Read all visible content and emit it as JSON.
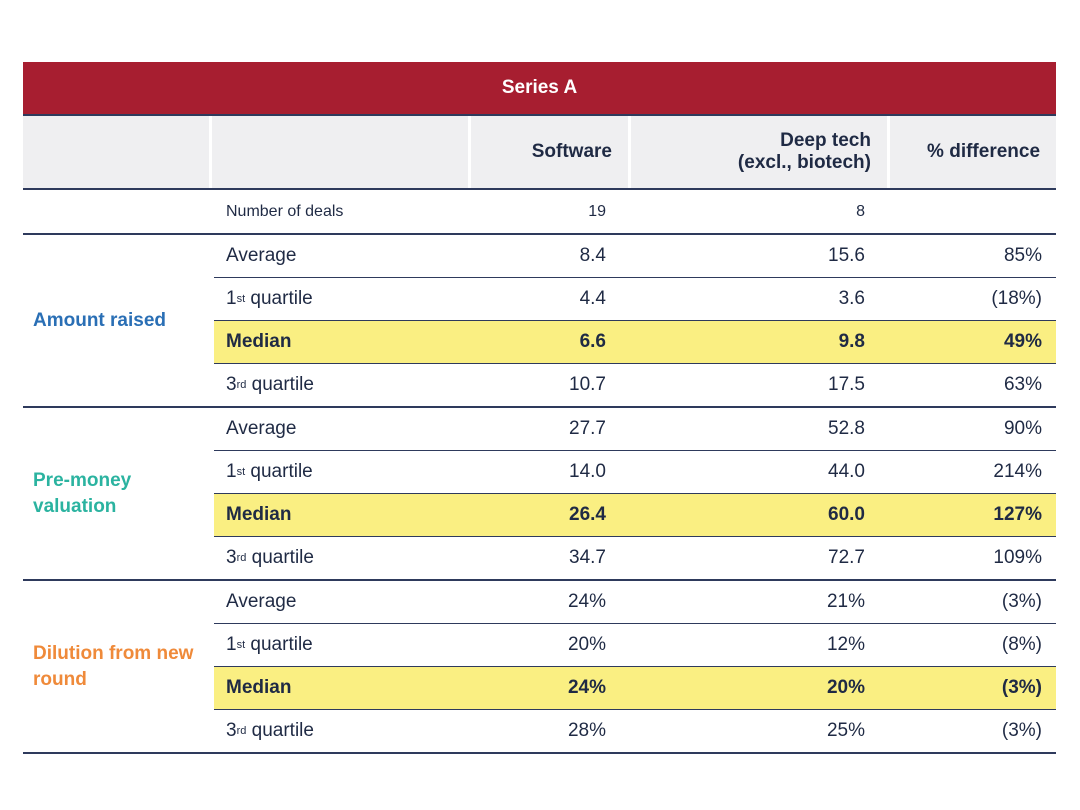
{
  "title": "Series A",
  "header": {
    "software": "Software",
    "deep_tech_line1": "Deep tech",
    "deep_tech_line2": "(excl., biotech)",
    "pct_diff": "% difference"
  },
  "deals": {
    "label": "Number of deals",
    "software": "19",
    "deep_tech": "8",
    "pct": ""
  },
  "groups": [
    {
      "label": "Amount raised",
      "color": "#2a6fb5",
      "rows": [
        {
          "base": "Average",
          "sup": "",
          "suffix": "",
          "software": "8.4",
          "deep_tech": "15.6",
          "pct": "85%",
          "highlight": false
        },
        {
          "base": "1",
          "sup": "st",
          "suffix": " quartile",
          "software": "4.4",
          "deep_tech": "3.6",
          "pct": "(18%)",
          "highlight": false
        },
        {
          "base": "Median",
          "sup": "",
          "suffix": "",
          "software": "6.6",
          "deep_tech": "9.8",
          "pct": "49%",
          "highlight": true
        },
        {
          "base": "3",
          "sup": "rd",
          "suffix": " quartile",
          "software": "10.7",
          "deep_tech": "17.5",
          "pct": "63%",
          "highlight": false
        }
      ]
    },
    {
      "label": "Pre-money valuation",
      "color": "#2bb3a0",
      "rows": [
        {
          "base": "Average",
          "sup": "",
          "suffix": "",
          "software": "27.7",
          "deep_tech": "52.8",
          "pct": "90%",
          "highlight": false
        },
        {
          "base": "1",
          "sup": "st",
          "suffix": " quartile",
          "software": "14.0",
          "deep_tech": "44.0",
          "pct": "214%",
          "highlight": false
        },
        {
          "base": "Median",
          "sup": "",
          "suffix": "",
          "software": "26.4",
          "deep_tech": "60.0",
          "pct": "127%",
          "highlight": true
        },
        {
          "base": "3",
          "sup": "rd",
          "suffix": " quartile",
          "software": "34.7",
          "deep_tech": "72.7",
          "pct": "109%",
          "highlight": false
        }
      ]
    },
    {
      "label": "Dilution from new round",
      "color": "#ef8a3a",
      "rows": [
        {
          "base": "Average",
          "sup": "",
          "suffix": "",
          "software": "24%",
          "deep_tech": "21%",
          "pct": "(3%)",
          "highlight": false
        },
        {
          "base": "1",
          "sup": "st",
          "suffix": " quartile",
          "software": "20%",
          "deep_tech": "12%",
          "pct": "(8%)",
          "highlight": false
        },
        {
          "base": "Median",
          "sup": "",
          "suffix": "",
          "software": "24%",
          "deep_tech": "20%",
          "pct": "(3%)",
          "highlight": true
        },
        {
          "base": "3",
          "sup": "rd",
          "suffix": " quartile",
          "software": "28%",
          "deep_tech": "25%",
          "pct": "(3%)",
          "highlight": false
        }
      ]
    }
  ]
}
